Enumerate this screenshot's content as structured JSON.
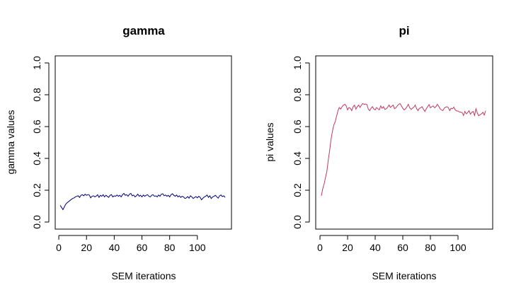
{
  "chart_data": [
    {
      "type": "line",
      "title": "gamma",
      "xlabel": "SEM iterations",
      "ylabel": "gamma values",
      "xlim": [
        1,
        120
      ],
      "ylim": [
        0,
        1
      ],
      "xticks": [
        "20",
        "40",
        "60",
        "80",
        "100"
      ],
      "yticks": [
        "0.0",
        "0.2",
        "0.4",
        "0.6",
        "0.8",
        "1.0"
      ],
      "xtick_values": [
        0,
        20,
        40,
        60,
        80,
        100
      ],
      "xtick_labels": [
        "0",
        "20",
        "40",
        "60",
        "80",
        "100"
      ],
      "ytick_values": [
        0,
        0.2,
        0.4,
        0.6,
        0.8,
        1.0
      ],
      "grid": false,
      "line_color": "#00007F",
      "series": [
        {
          "x": [
            1,
            2,
            3,
            4,
            5,
            6,
            7,
            8,
            9,
            10,
            11,
            12,
            13,
            14,
            15,
            16,
            17,
            18,
            19,
            20,
            21,
            22,
            23,
            24,
            25,
            26,
            27,
            28,
            29,
            30,
            31,
            32,
            33,
            34,
            35,
            36,
            37,
            38,
            39,
            40,
            41,
            42,
            43,
            44,
            45,
            46,
            47,
            48,
            49,
            50,
            51,
            52,
            53,
            54,
            55,
            56,
            57,
            58,
            59,
            60,
            61,
            62,
            63,
            64,
            65,
            66,
            67,
            68,
            69,
            70,
            71,
            72,
            73,
            74,
            75,
            76,
            77,
            78,
            79,
            80,
            81,
            82,
            83,
            84,
            85,
            86,
            87,
            88,
            89,
            90,
            91,
            92,
            93,
            94,
            95,
            96,
            97,
            98,
            99,
            100,
            101,
            102,
            103,
            104,
            105,
            106,
            107,
            108,
            109,
            110,
            111,
            112,
            113,
            114,
            115,
            116,
            117,
            118,
            119,
            120
          ],
          "values": [
            0.105,
            0.092,
            0.078,
            0.095,
            0.112,
            0.121,
            0.128,
            0.135,
            0.142,
            0.148,
            0.152,
            0.158,
            0.162,
            0.165,
            0.155,
            0.168,
            0.172,
            0.165,
            0.175,
            0.168,
            0.172,
            0.17,
            0.152,
            0.162,
            0.165,
            0.158,
            0.163,
            0.172,
            0.155,
            0.168,
            0.162,
            0.172,
            0.158,
            0.168,
            0.162,
            0.155,
            0.168,
            0.172,
            0.158,
            0.165,
            0.162,
            0.17,
            0.162,
            0.168,
            0.158,
            0.172,
            0.18,
            0.168,
            0.172,
            0.162,
            0.175,
            0.18,
            0.165,
            0.17,
            0.158,
            0.165,
            0.175,
            0.162,
            0.168,
            0.158,
            0.17,
            0.162,
            0.168,
            0.172,
            0.162,
            0.158,
            0.168,
            0.172,
            0.162,
            0.165,
            0.158,
            0.17,
            0.162,
            0.175,
            0.178,
            0.165,
            0.17,
            0.162,
            0.168,
            0.158,
            0.172,
            0.178,
            0.168,
            0.162,
            0.17,
            0.158,
            0.165,
            0.155,
            0.162,
            0.158,
            0.148,
            0.152,
            0.16,
            0.15,
            0.165,
            0.158,
            0.148,
            0.155,
            0.16,
            0.152,
            0.162,
            0.155,
            0.14,
            0.15,
            0.158,
            0.162,
            0.17,
            0.155,
            0.165,
            0.148,
            0.158,
            0.162,
            0.168,
            0.158,
            0.15,
            0.165,
            0.17,
            0.16,
            0.165,
            0.155
          ]
        }
      ]
    },
    {
      "type": "line",
      "title": "pi",
      "xlabel": "SEM iterations",
      "ylabel": "pi values",
      "xlim": [
        1,
        120
      ],
      "ylim": [
        0,
        1
      ],
      "xtick_values": [
        0,
        20,
        40,
        60,
        80,
        100
      ],
      "xtick_labels": [
        "0",
        "20",
        "40",
        "60",
        "80",
        "100"
      ],
      "ytick_values": [
        0,
        0.2,
        0.4,
        0.6,
        0.8,
        1.0
      ],
      "ytick_labels": [
        "0.0",
        "0.2",
        "0.4",
        "0.6",
        "0.8",
        "1.0"
      ],
      "grid": false,
      "line_color": "#C0395E",
      "series": [
        {
          "x": [
            1,
            2,
            3,
            4,
            5,
            6,
            7,
            8,
            9,
            10,
            11,
            12,
            13,
            14,
            15,
            16,
            17,
            18,
            19,
            20,
            21,
            22,
            23,
            24,
            25,
            26,
            27,
            28,
            29,
            30,
            31,
            32,
            33,
            34,
            35,
            36,
            37,
            38,
            39,
            40,
            41,
            42,
            43,
            44,
            45,
            46,
            47,
            48,
            49,
            50,
            51,
            52,
            53,
            54,
            55,
            56,
            57,
            58,
            59,
            60,
            61,
            62,
            63,
            64,
            65,
            66,
            67,
            68,
            69,
            70,
            71,
            72,
            73,
            74,
            75,
            76,
            77,
            78,
            79,
            80,
            81,
            82,
            83,
            84,
            85,
            86,
            87,
            88,
            89,
            90,
            91,
            92,
            93,
            94,
            95,
            96,
            97,
            98,
            99,
            100,
            101,
            102,
            103,
            104,
            105,
            106,
            107,
            108,
            109,
            110,
            111,
            112,
            113,
            114,
            115,
            116,
            117,
            118,
            119,
            120
          ],
          "values": [
            0.165,
            0.21,
            0.24,
            0.28,
            0.32,
            0.39,
            0.45,
            0.52,
            0.57,
            0.61,
            0.63,
            0.665,
            0.7,
            0.72,
            0.71,
            0.725,
            0.735,
            0.74,
            0.73,
            0.705,
            0.72,
            0.715,
            0.7,
            0.725,
            0.735,
            0.71,
            0.725,
            0.735,
            0.72,
            0.735,
            0.745,
            0.74,
            0.742,
            0.738,
            0.71,
            0.7,
            0.715,
            0.725,
            0.71,
            0.705,
            0.72,
            0.712,
            0.705,
            0.73,
            0.715,
            0.725,
            0.708,
            0.712,
            0.722,
            0.735,
            0.72,
            0.728,
            0.735,
            0.712,
            0.718,
            0.73,
            0.74,
            0.745,
            0.73,
            0.715,
            0.705,
            0.712,
            0.725,
            0.74,
            0.718,
            0.708,
            0.715,
            0.722,
            0.735,
            0.712,
            0.7,
            0.715,
            0.718,
            0.725,
            0.708,
            0.695,
            0.712,
            0.725,
            0.738,
            0.718,
            0.725,
            0.73,
            0.718,
            0.725,
            0.74,
            0.728,
            0.712,
            0.705,
            0.7,
            0.715,
            0.722,
            0.725,
            0.718,
            0.7,
            0.715,
            0.712,
            0.722,
            0.705,
            0.698,
            0.698,
            0.692,
            0.69,
            0.688,
            0.67,
            0.695,
            0.68,
            0.688,
            0.7,
            0.678,
            0.69,
            0.695,
            0.67,
            0.712,
            0.685,
            0.668,
            0.675,
            0.68,
            0.69,
            0.672,
            0.7
          ]
        }
      ]
    }
  ]
}
